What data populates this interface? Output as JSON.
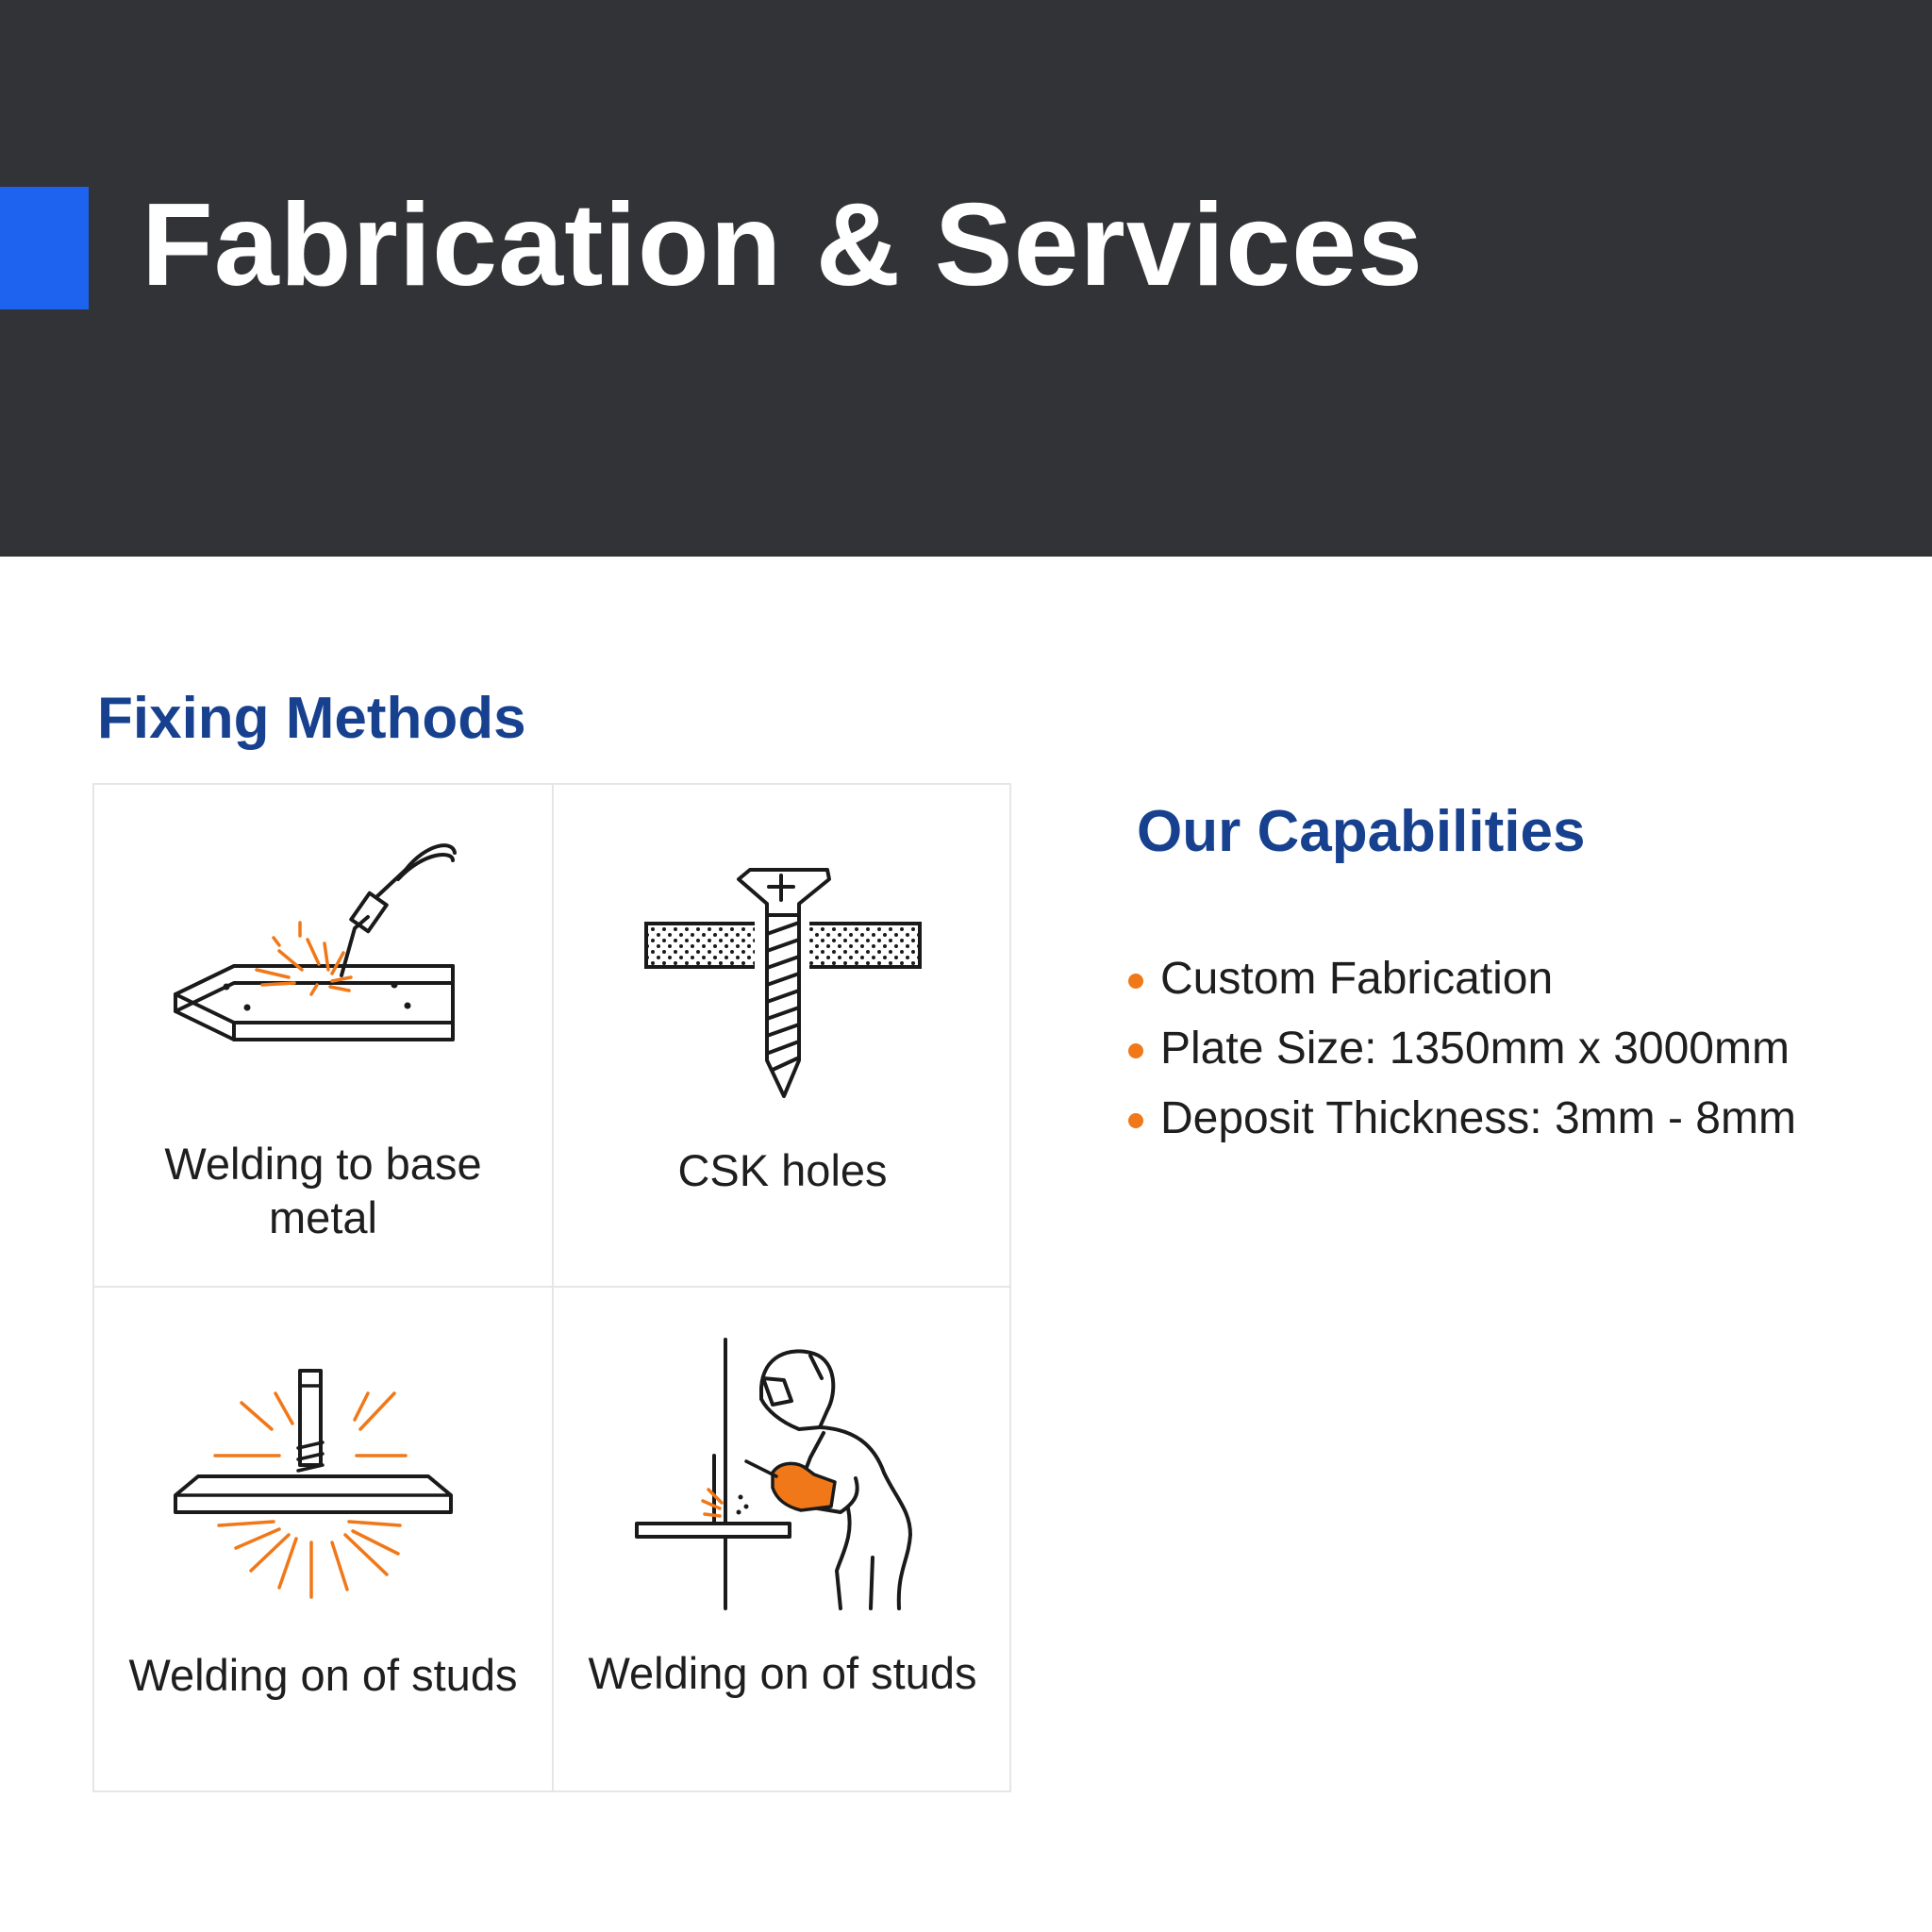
{
  "header": {
    "title": "Fabrication & Services",
    "background": "#323336",
    "accent_color": "#1e63f0"
  },
  "fixing_methods": {
    "title": "Fixing Methods",
    "title_color": "#17418f",
    "items": [
      {
        "label": "Welding to base metal",
        "icon": "welding-torch-icon"
      },
      {
        "label": "CSK holes",
        "icon": "countersunk-screw-icon"
      },
      {
        "label": "Welding on of studs",
        "icon": "stud-weld-icon"
      },
      {
        "label": "Welding on of studs",
        "icon": "welder-worker-icon"
      }
    ]
  },
  "capabilities": {
    "title": "Our Capabilities",
    "bullet_color": "#f07819",
    "items": [
      "Custom Fabrication",
      "Plate Size: 1350mm x 3000mm",
      "Deposit Thickness: 3mm - 8mm"
    ]
  }
}
